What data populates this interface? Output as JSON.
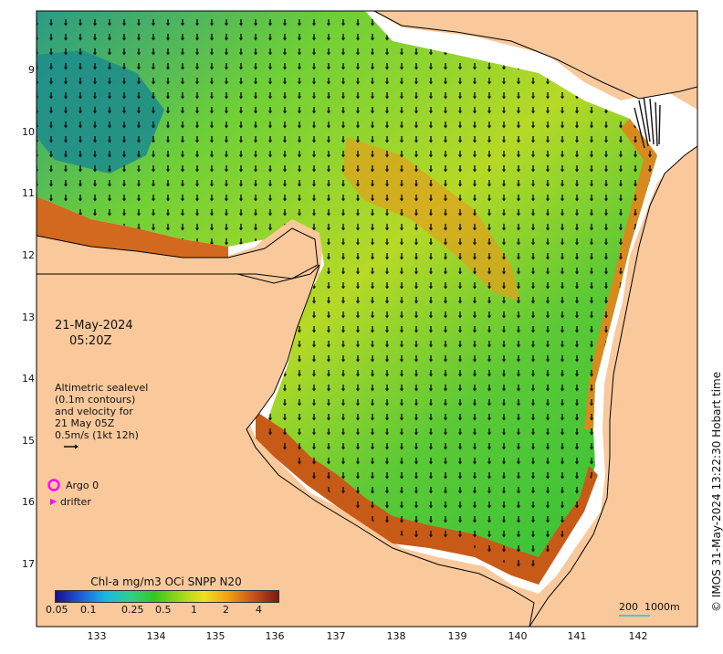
{
  "map": {
    "date_label": "21-May-2024",
    "time_label": "05:20Z",
    "legend": {
      "line1": "Altimetric sealevel",
      "line2": "(0.1m contours)",
      "line3": "and velocity for",
      "line4": "21 May 05Z",
      "line5": "0.5m/s (1kt 12h)"
    },
    "argo_label": "Argo 0",
    "drifter_label": "drifter",
    "y_ticks": [
      "9",
      "10",
      "11",
      "12",
      "13",
      "14",
      "15",
      "16",
      "17"
    ],
    "x_ticks": [
      "133",
      "134",
      "135",
      "136",
      "137",
      "138",
      "139",
      "140",
      "141",
      "142"
    ],
    "colorbar": {
      "title": "Chl-a mg/m3 OCi SNPP N20",
      "ticks": [
        "0.05",
        "0.1",
        "0.25",
        "0.5",
        "1",
        "2",
        "4"
      ],
      "colors": [
        "#1a0f8c",
        "#1f5ad6",
        "#16b7e6",
        "#2fcf8a",
        "#34c81e",
        "#9bd619",
        "#f0e01e",
        "#f39c14",
        "#c8501a",
        "#7a1a10"
      ]
    },
    "scale_bar": {
      "label_200": "200",
      "label_1000": "1000m"
    },
    "credit": "© IMOS 31-May-2024 13:22:30 Hobart time",
    "colors": {
      "land": "#f9c99c",
      "ocean_low": "#1f8e8a",
      "ocean_mid": "#3cc93c",
      "ocean_high": "#d97a1a",
      "shelf_edge": "#ffffff"
    }
  }
}
